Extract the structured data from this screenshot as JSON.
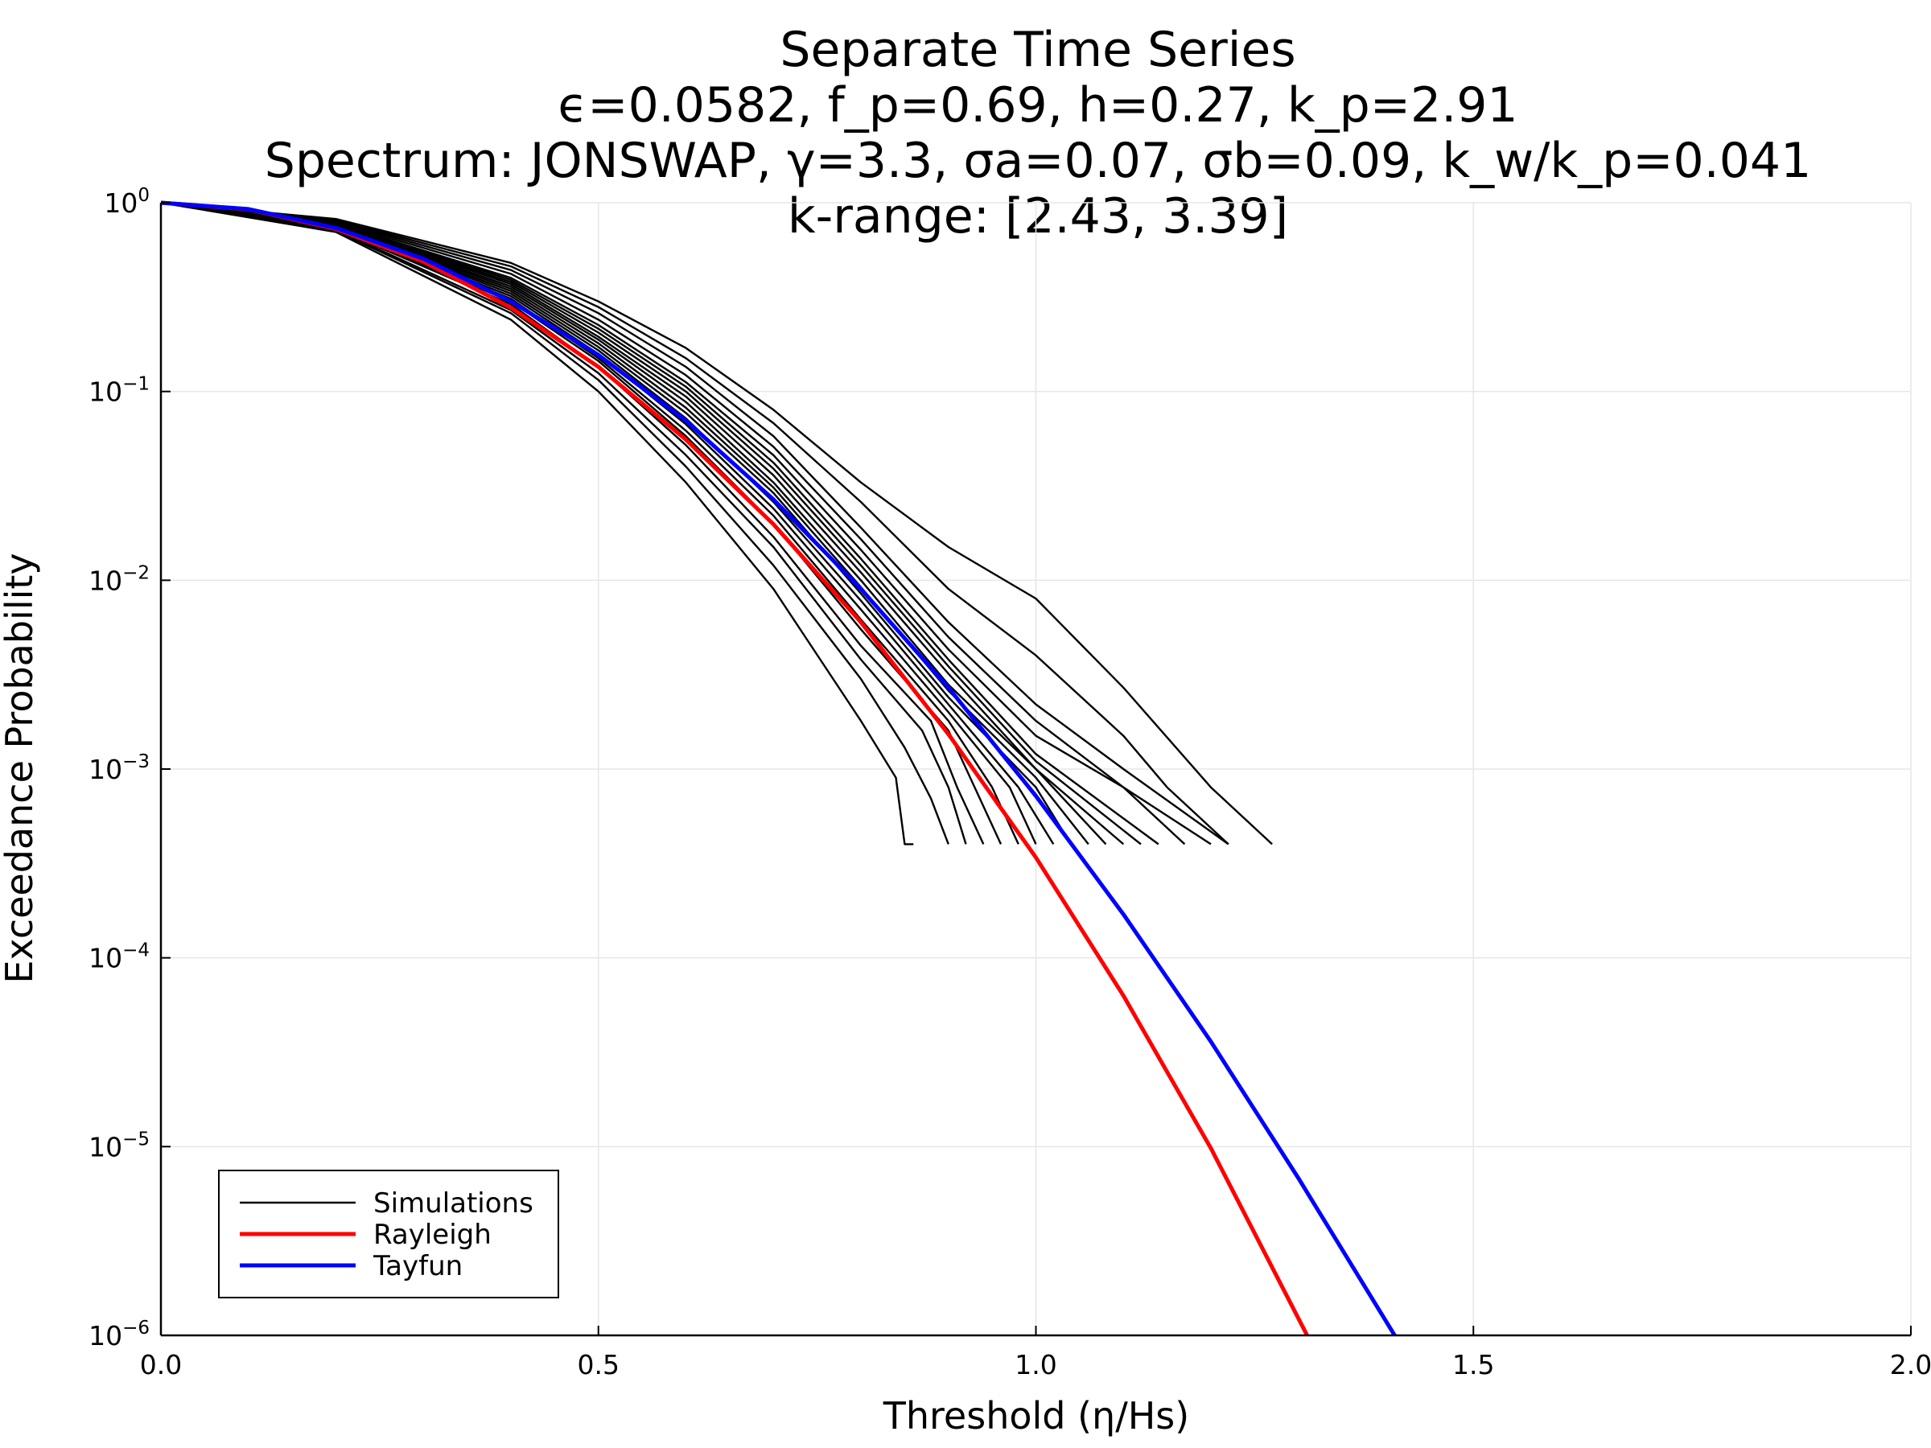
{
  "chart_data": {
    "type": "line",
    "title": [
      "Separate Time Series",
      "ϵ=0.0582, f_p=0.69, h=0.27, k_p=2.91",
      "Spectrum: JONSWAP, γ=3.3, σa=0.07, σb=0.09, k_w/k_p=0.041",
      "k-range: [2.43, 3.39]"
    ],
    "xlabel": "Threshold (η/Hs)",
    "ylabel": "Exceedance Probability",
    "xlim": [
      0,
      2
    ],
    "ylim": [
      1e-06,
      1
    ],
    "yscale": "log",
    "grid": true,
    "x_ticks": [
      {
        "value": 0.0,
        "label": "0.0"
      },
      {
        "value": 0.5,
        "label": "0.5"
      },
      {
        "value": 1.0,
        "label": "1.0"
      },
      {
        "value": 1.5,
        "label": "1.5"
      },
      {
        "value": 2.0,
        "label": "2.0"
      }
    ],
    "y_ticks": [
      {
        "exp": 0,
        "base": "10",
        "sup": "0"
      },
      {
        "exp": -1,
        "base": "10",
        "sup": "−1"
      },
      {
        "exp": -2,
        "base": "10",
        "sup": "−2"
      },
      {
        "exp": -3,
        "base": "10",
        "sup": "−3"
      },
      {
        "exp": -4,
        "base": "10",
        "sup": "−4"
      },
      {
        "exp": -5,
        "base": "10",
        "sup": "−5"
      },
      {
        "exp": -6,
        "base": "10",
        "sup": "−6"
      }
    ],
    "legend": {
      "position": "bottom-left",
      "entries": [
        {
          "label": "Simulations",
          "color": "#000000"
        },
        {
          "label": "Rayleigh",
          "color": "#ff0000"
        },
        {
          "label": "Tayfun",
          "color": "#0000ff"
        }
      ]
    },
    "series": [
      {
        "name": "Rayleigh",
        "color": "#ff0000",
        "x": [
          0,
          0.1,
          0.2,
          0.3,
          0.4,
          0.5,
          0.6,
          0.7,
          0.8,
          0.9,
          1.0,
          1.1,
          1.2,
          1.31
        ],
        "y": [
          1,
          0.923,
          0.726,
          0.487,
          0.278,
          0.135,
          0.0556,
          0.0198,
          0.006,
          0.00153,
          0.00034,
          6.3e-05,
          9.8e-06,
          1e-06
        ]
      },
      {
        "name": "Tayfun",
        "color": "#0000ff",
        "x": [
          0,
          0.1,
          0.2,
          0.3,
          0.4,
          0.5,
          0.6,
          0.7,
          0.8,
          0.9,
          1.0,
          1.1,
          1.2,
          1.3,
          1.41
        ],
        "y": [
          1,
          0.925,
          0.735,
          0.505,
          0.3,
          0.156,
          0.07,
          0.0268,
          0.009,
          0.0027,
          0.00072,
          0.00017,
          3.6e-05,
          6.8e-06,
          1e-06
        ]
      },
      {
        "name": "Simulations",
        "color": "#000000",
        "runs": [
          {
            "x": [
              0,
              0.2,
              0.4,
              0.5,
              0.6,
              0.7,
              0.8,
              0.84,
              0.85,
              0.86
            ],
            "y": [
              1,
              0.7,
              0.24,
              0.1,
              0.033,
              0.009,
              0.0018,
              0.0009,
              0.0004,
              0.0004
            ]
          },
          {
            "x": [
              0,
              0.2,
              0.4,
              0.5,
              0.6,
              0.7,
              0.8,
              0.85,
              0.88,
              0.9
            ],
            "y": [
              1,
              0.71,
              0.26,
              0.115,
              0.04,
              0.012,
              0.003,
              0.0013,
              0.0007,
              0.0004
            ]
          },
          {
            "x": [
              0,
              0.2,
              0.4,
              0.5,
              0.6,
              0.7,
              0.8,
              0.87,
              0.9,
              0.92
            ],
            "y": [
              1,
              0.72,
              0.27,
              0.125,
              0.046,
              0.015,
              0.0038,
              0.0016,
              0.0008,
              0.0004
            ]
          },
          {
            "x": [
              0,
              0.2,
              0.4,
              0.5,
              0.6,
              0.7,
              0.8,
              0.88,
              0.91,
              0.94
            ],
            "y": [
              1,
              0.73,
              0.29,
              0.135,
              0.052,
              0.017,
              0.0045,
              0.0018,
              0.0008,
              0.0004
            ]
          },
          {
            "x": [
              0,
              0.2,
              0.4,
              0.5,
              0.6,
              0.7,
              0.8,
              0.9,
              0.93,
              0.96
            ],
            "y": [
              1,
              0.73,
              0.3,
              0.145,
              0.058,
              0.02,
              0.0055,
              0.0016,
              0.0008,
              0.0004
            ]
          },
          {
            "x": [
              0,
              0.2,
              0.4,
              0.5,
              0.6,
              0.7,
              0.8,
              0.9,
              0.95,
              0.98
            ],
            "y": [
              1,
              0.74,
              0.31,
              0.15,
              0.062,
              0.022,
              0.0062,
              0.0018,
              0.0008,
              0.0004
            ]
          },
          {
            "x": [
              0,
              0.2,
              0.4,
              0.5,
              0.6,
              0.7,
              0.8,
              0.9,
              0.97,
              1.0
            ],
            "y": [
              1,
              0.74,
              0.32,
              0.158,
              0.067,
              0.024,
              0.007,
              0.002,
              0.0008,
              0.0004
            ]
          },
          {
            "x": [
              0,
              0.2,
              0.4,
              0.5,
              0.6,
              0.7,
              0.8,
              0.9,
              0.98,
              1.02
            ],
            "y": [
              1,
              0.75,
              0.33,
              0.165,
              0.072,
              0.026,
              0.0078,
              0.0022,
              0.0008,
              0.0004
            ]
          },
          {
            "x": [
              0,
              0.2,
              0.4,
              0.5,
              0.6,
              0.7,
              0.8,
              0.9,
              1.0,
              1.04
            ],
            "y": [
              1,
              0.75,
              0.34,
              0.172,
              0.077,
              0.029,
              0.0085,
              0.0024,
              0.0008,
              0.0004
            ]
          },
          {
            "x": [
              0,
              0.2,
              0.4,
              0.5,
              0.6,
              0.7,
              0.8,
              0.9,
              1.0,
              1.06
            ],
            "y": [
              1,
              0.76,
              0.35,
              0.18,
              0.082,
              0.031,
              0.0092,
              0.0026,
              0.0009,
              0.0004
            ]
          },
          {
            "x": [
              0,
              0.2,
              0.4,
              0.5,
              0.6,
              0.7,
              0.8,
              0.9,
              1.0,
              1.08
            ],
            "y": [
              1,
              0.76,
              0.36,
              0.188,
              0.088,
              0.033,
              0.01,
              0.0028,
              0.001,
              0.0004
            ]
          },
          {
            "x": [
              0,
              0.2,
              0.4,
              0.5,
              0.6,
              0.7,
              0.8,
              0.9,
              1.0,
              1.1
            ],
            "y": [
              1,
              0.77,
              0.37,
              0.195,
              0.094,
              0.036,
              0.011,
              0.0032,
              0.001,
              0.0004
            ]
          },
          {
            "x": [
              0,
              0.2,
              0.4,
              0.5,
              0.6,
              0.7,
              0.8,
              0.9,
              1.0,
              1.12
            ],
            "y": [
              1,
              0.77,
              0.38,
              0.205,
              0.1,
              0.039,
              0.012,
              0.0035,
              0.0011,
              0.0004
            ]
          },
          {
            "x": [
              0,
              0.2,
              0.4,
              0.5,
              0.6,
              0.7,
              0.8,
              0.9,
              1.0,
              1.14
            ],
            "y": [
              1,
              0.78,
              0.39,
              0.215,
              0.106,
              0.042,
              0.013,
              0.0038,
              0.0012,
              0.0004
            ]
          },
          {
            "x": [
              0,
              0.2,
              0.4,
              0.5,
              0.6,
              0.7,
              0.8,
              0.9,
              1.0,
              1.1,
              1.17
            ],
            "y": [
              1,
              0.78,
              0.4,
              0.225,
              0.112,
              0.046,
              0.0145,
              0.0043,
              0.0015,
              0.0008,
              0.0004
            ]
          },
          {
            "x": [
              0,
              0.2,
              0.4,
              0.5,
              0.6,
              0.7,
              0.8,
              0.9,
              1.0,
              1.1,
              1.2
            ],
            "y": [
              1,
              0.79,
              0.42,
              0.24,
              0.122,
              0.051,
              0.0165,
              0.005,
              0.0018,
              0.0008,
              0.0004
            ]
          },
          {
            "x": [
              0,
              0.2,
              0.4,
              0.5,
              0.6,
              0.7,
              0.8,
              0.9,
              1.0,
              1.1,
              1.22
            ],
            "y": [
              1,
              0.8,
              0.44,
              0.26,
              0.135,
              0.058,
              0.019,
              0.006,
              0.0022,
              0.001,
              0.0004
            ]
          },
          {
            "x": [
              0,
              0.2,
              0.4,
              0.5,
              0.6,
              0.7,
              0.8,
              0.9,
              1.0,
              1.1,
              1.15,
              1.22
            ],
            "y": [
              1,
              0.81,
              0.46,
              0.28,
              0.15,
              0.068,
              0.026,
              0.009,
              0.004,
              0.0015,
              0.0008,
              0.0004
            ]
          },
          {
            "x": [
              0,
              0.2,
              0.4,
              0.5,
              0.6,
              0.7,
              0.8,
              0.9,
              1.0,
              1.1,
              1.2,
              1.27
            ],
            "y": [
              1,
              0.82,
              0.48,
              0.3,
              0.17,
              0.08,
              0.033,
              0.015,
              0.008,
              0.0027,
              0.0008,
              0.0004
            ]
          }
        ]
      }
    ]
  }
}
